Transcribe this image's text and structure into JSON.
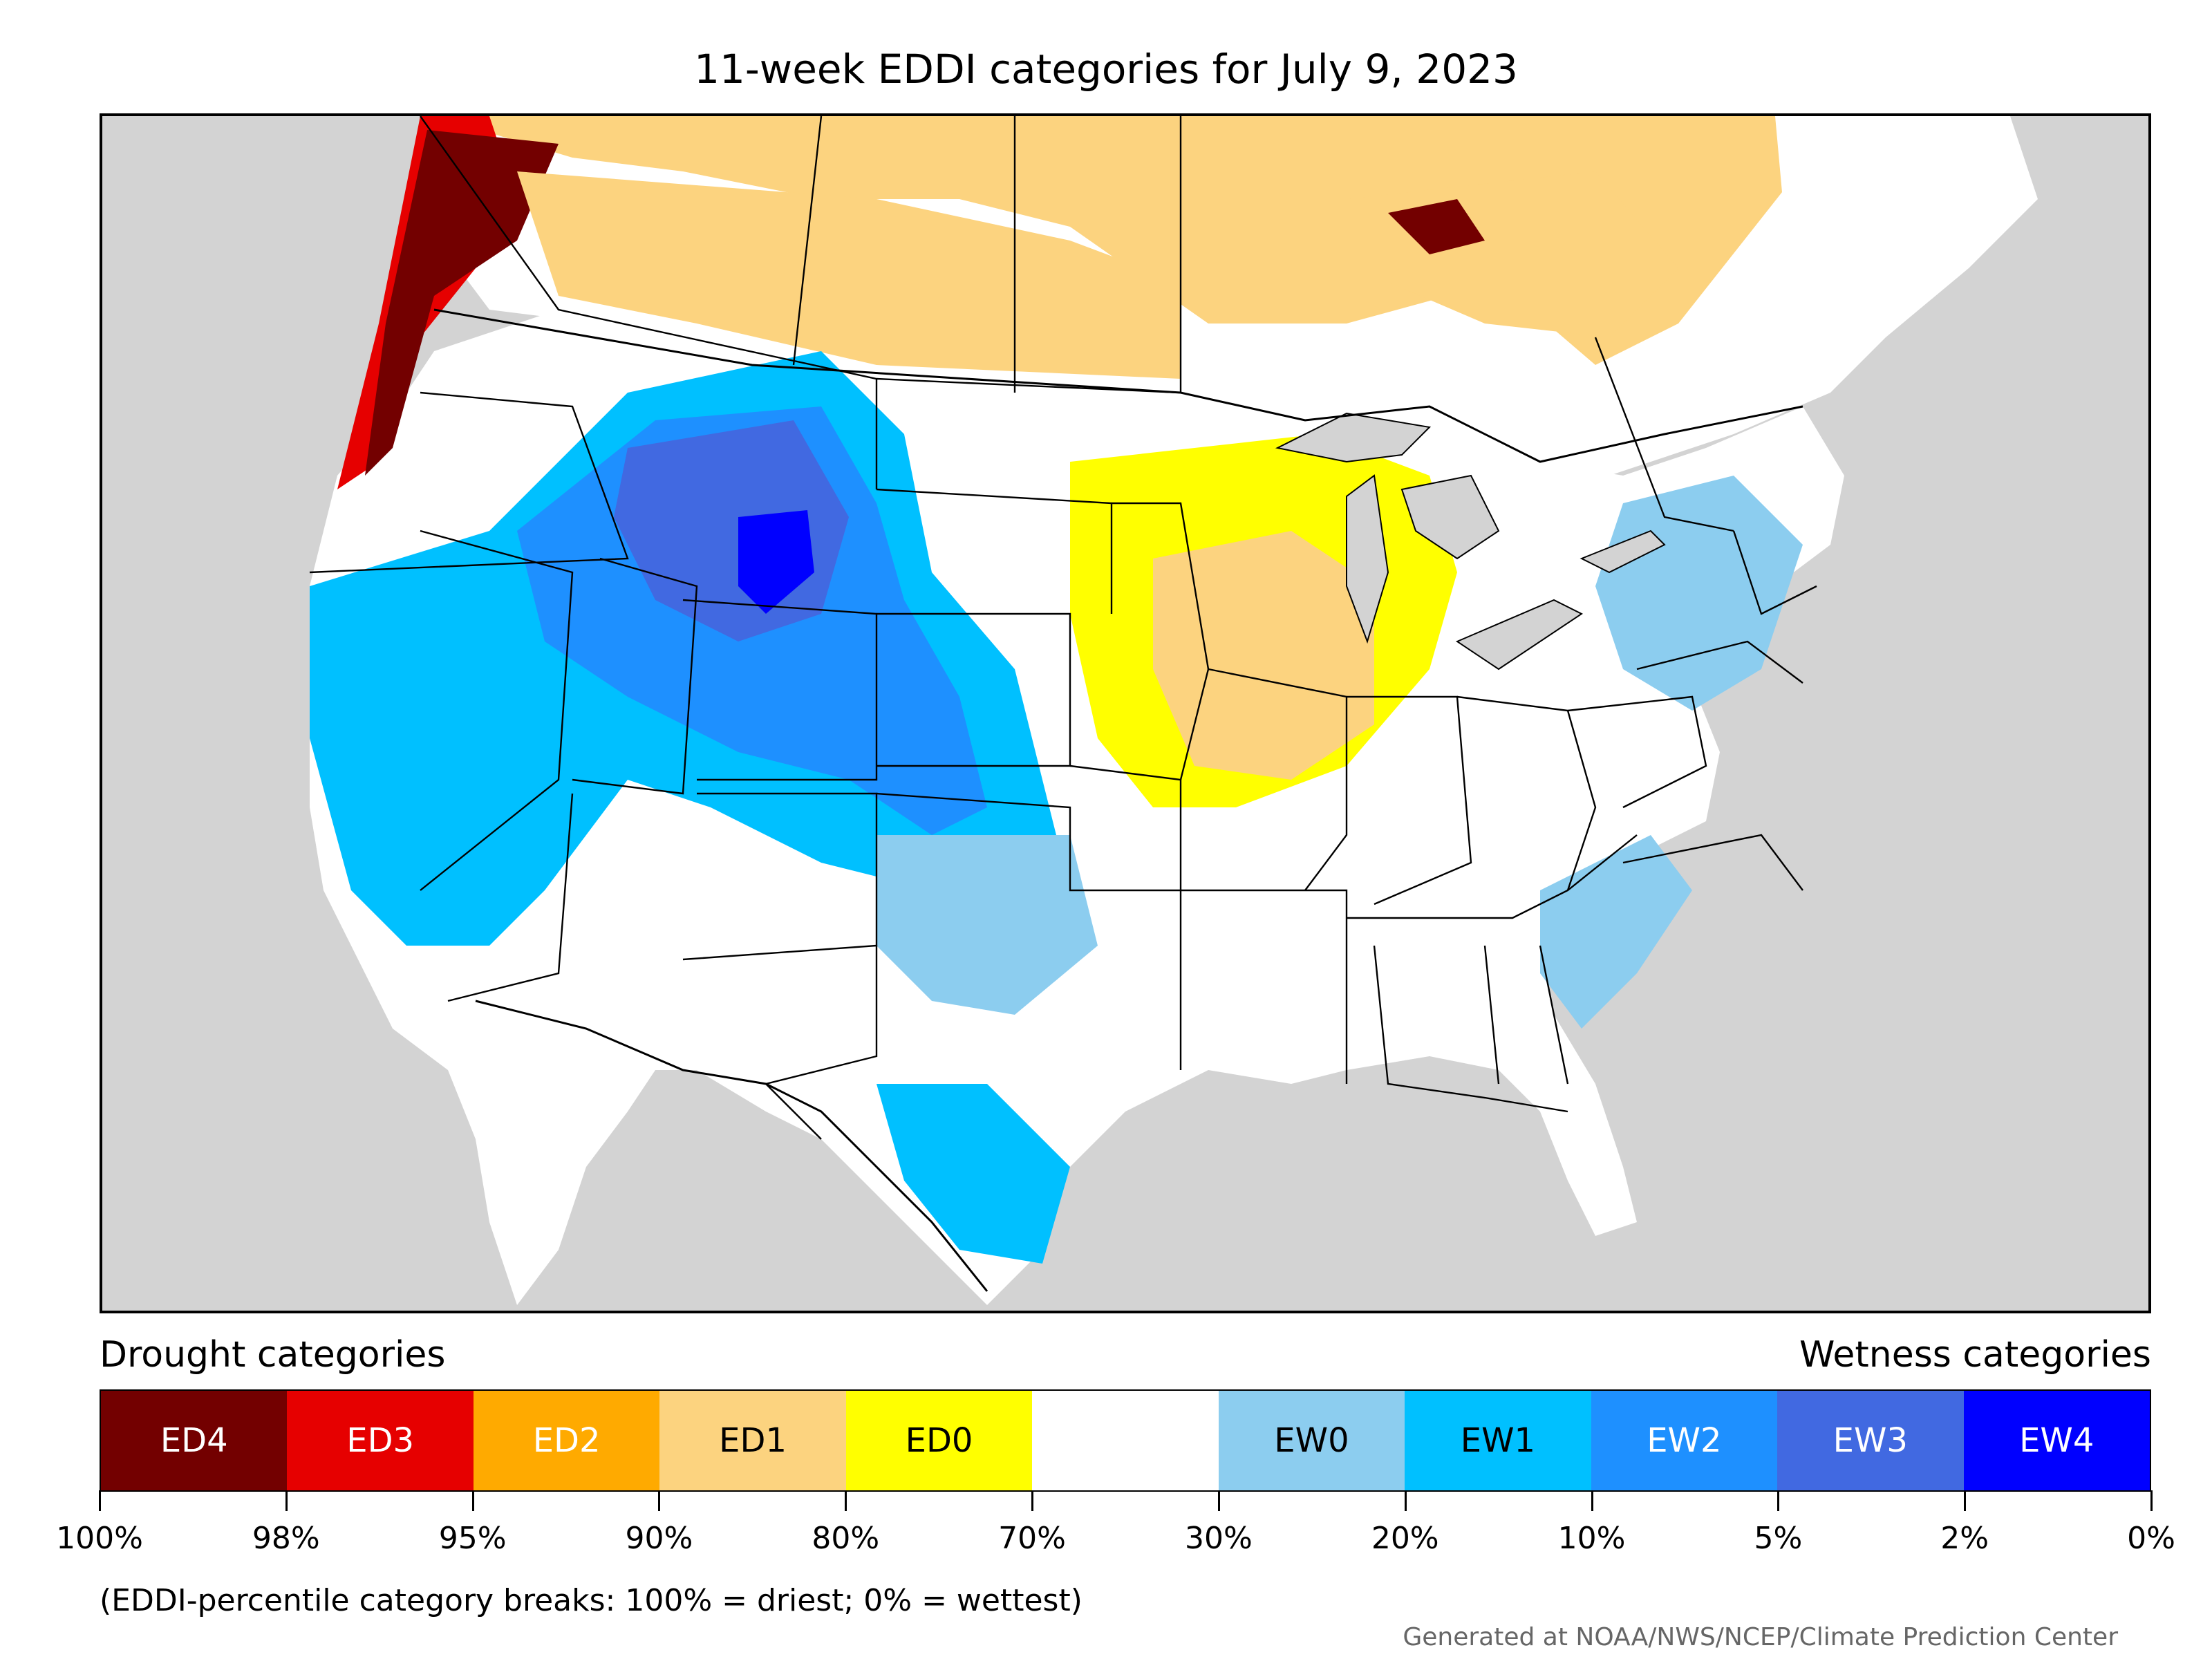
{
  "title": "11-week EDDI categories for July 9, 2023",
  "legend": {
    "drought_header": "Drought categories",
    "wetness_header": "Wetness categories",
    "categories": [
      {
        "label": "ED4",
        "color": "#730000",
        "text_color": "#ffffff"
      },
      {
        "label": "ED3",
        "color": "#e60000",
        "text_color": "#ffffff"
      },
      {
        "label": "ED2",
        "color": "#ffaa00",
        "text_color": "#ffffff"
      },
      {
        "label": "ED1",
        "color": "#fcd37f",
        "text_color": "#000000"
      },
      {
        "label": "ED0",
        "color": "#ffff00",
        "text_color": "#000000"
      },
      {
        "label": "",
        "color": "#ffffff",
        "text_color": "#000000"
      },
      {
        "label": "EW0",
        "color": "#8ccdef",
        "text_color": "#000000"
      },
      {
        "label": "EW1",
        "color": "#00c0ff",
        "text_color": "#000000"
      },
      {
        "label": "EW2",
        "color": "#1e90ff",
        "text_color": "#ffffff"
      },
      {
        "label": "EW3",
        "color": "#4169e1",
        "text_color": "#ffffff"
      },
      {
        "label": "EW4",
        "color": "#0000ff",
        "text_color": "#ffffff"
      }
    ],
    "breaks": [
      "100%",
      "98%",
      "95%",
      "90%",
      "80%",
      "70%",
      "30%",
      "20%",
      "10%",
      "5%",
      "2%",
      "0%"
    ]
  },
  "note": "(EDDI-percentile category breaks: 100% = driest; 0% = wettest)",
  "credit": "Generated at NOAA/NWS/NCEP/Climate Prediction Center",
  "map": {
    "land_color": "#ffffff",
    "water_color": "#d3d3d3",
    "ocean_color": "#d3d3d3"
  }
}
